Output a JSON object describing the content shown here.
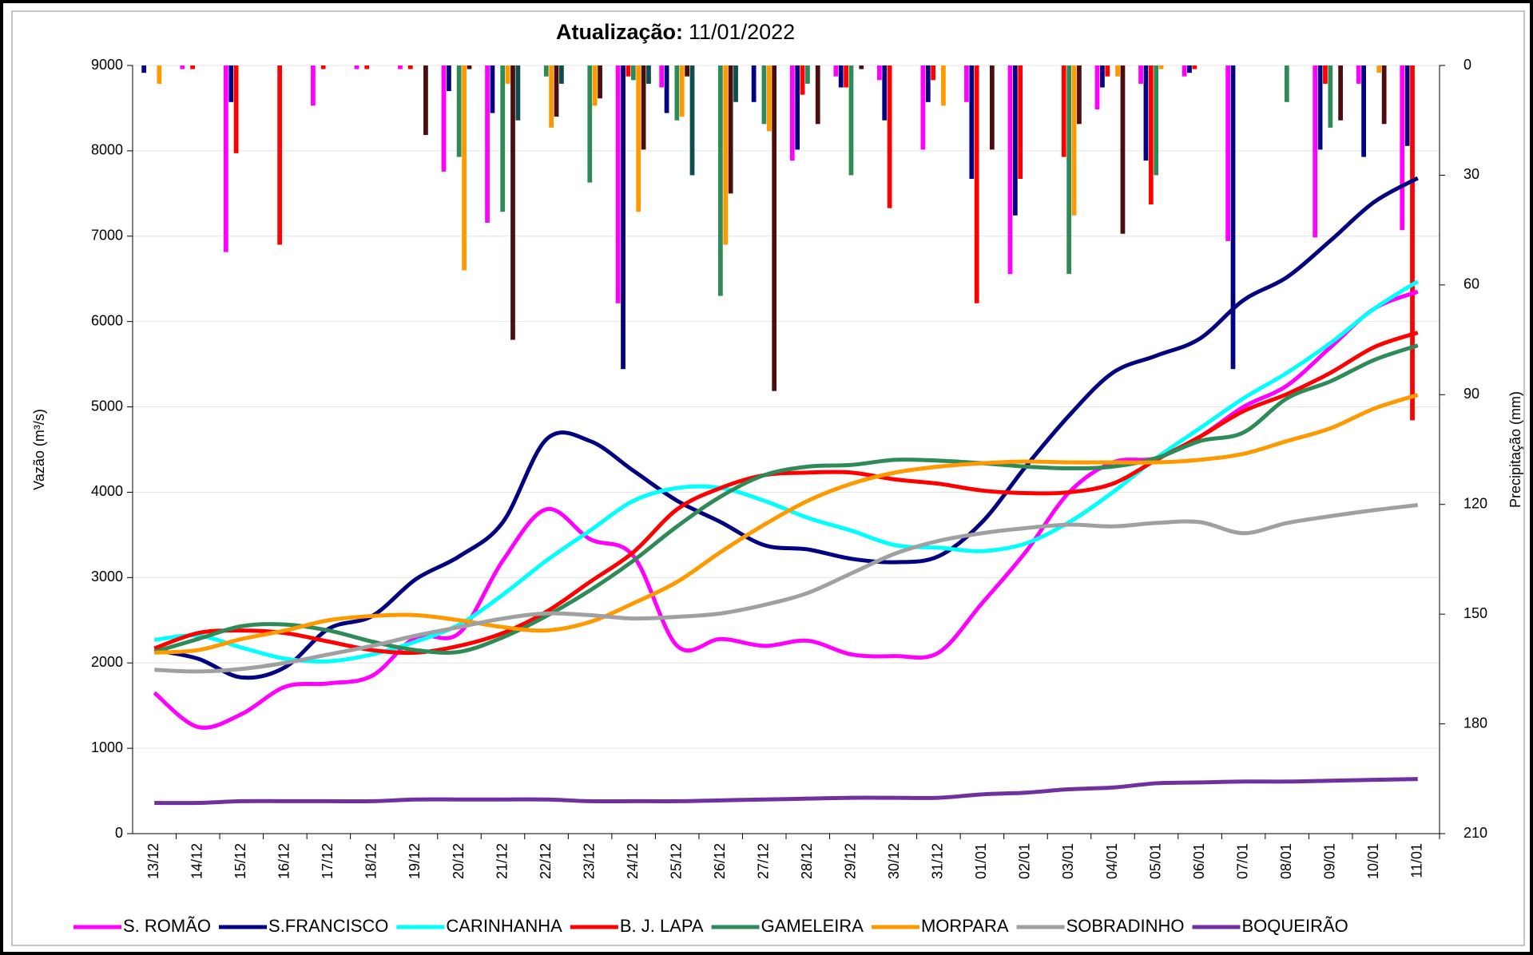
{
  "chart_data": {
    "type": "line",
    "title_label": "Atualização:",
    "title_date": "11/01/2022",
    "y_label": "Vazão (m³/s)",
    "y2_label": "Precipitação (mm)",
    "categories": [
      "13/12",
      "14/12",
      "15/12",
      "16/12",
      "17/12",
      "18/12",
      "19/12",
      "20/12",
      "21/12",
      "22/12",
      "23/12",
      "24/12",
      "25/12",
      "26/12",
      "27/12",
      "28/12",
      "29/12",
      "30/12",
      "31/12",
      "01/01",
      "02/01",
      "03/01",
      "04/01",
      "05/01",
      "06/01",
      "07/01",
      "08/01",
      "09/01",
      "10/01",
      "11/01"
    ],
    "ylim": [
      0,
      9000
    ],
    "yticks": [
      0,
      1000,
      2000,
      3000,
      4000,
      5000,
      6000,
      7000,
      8000,
      9000
    ],
    "y2lim": [
      0,
      210
    ],
    "y2ticks": [
      0,
      30,
      60,
      90,
      120,
      150,
      180,
      210
    ],
    "y2_inverted": true,
    "grid": true,
    "legend": "bottom",
    "series": [
      {
        "name": "S. ROMÃO",
        "color": "#ff00ff",
        "values": [
          1650,
          1250,
          1400,
          1720,
          1760,
          1850,
          2300,
          2350,
          3200,
          3800,
          3450,
          3250,
          2200,
          2280,
          2200,
          2260,
          2100,
          2080,
          2120,
          2700,
          3300,
          4000,
          4350,
          4400,
          4650,
          5000,
          5250,
          5700,
          6150,
          6350
        ]
      },
      {
        "name": "S.FRANCISCO",
        "color": "#000080",
        "values": [
          2150,
          2050,
          1830,
          1950,
          2400,
          2550,
          2980,
          3250,
          3650,
          4620,
          4600,
          4250,
          3900,
          3650,
          3380,
          3330,
          3220,
          3180,
          3250,
          3650,
          4300,
          4900,
          5400,
          5600,
          5800,
          6250,
          6520,
          6950,
          7400,
          7680
        ]
      },
      {
        "name": "CARINHANHA",
        "color": "#00ffff",
        "values": [
          2270,
          2320,
          2180,
          2050,
          2020,
          2100,
          2250,
          2450,
          2800,
          3200,
          3550,
          3900,
          4050,
          4050,
          3900,
          3700,
          3550,
          3380,
          3350,
          3310,
          3400,
          3650,
          4000,
          4400,
          4750,
          5100,
          5400,
          5750,
          6150,
          6470
        ]
      },
      {
        "name": "B. J. LAPA",
        "color": "#ff0000",
        "values": [
          2170,
          2350,
          2380,
          2350,
          2250,
          2150,
          2120,
          2200,
          2350,
          2600,
          2950,
          3300,
          3800,
          4050,
          4200,
          4230,
          4230,
          4150,
          4100,
          4020,
          3990,
          4000,
          4100,
          4380,
          4650,
          4950,
          5150,
          5400,
          5700,
          5870
        ]
      },
      {
        "name": "GAMELEIRA",
        "color": "#2e8b57",
        "values": [
          2130,
          2280,
          2430,
          2450,
          2380,
          2250,
          2150,
          2130,
          2300,
          2550,
          2850,
          3200,
          3600,
          3950,
          4200,
          4300,
          4320,
          4380,
          4370,
          4340,
          4300,
          4280,
          4300,
          4400,
          4600,
          4700,
          5100,
          5300,
          5550,
          5720
        ]
      },
      {
        "name": "MORPARA",
        "color": "#ff9900",
        "values": [
          2120,
          2150,
          2280,
          2380,
          2500,
          2550,
          2560,
          2500,
          2420,
          2380,
          2480,
          2700,
          2950,
          3300,
          3620,
          3900,
          4100,
          4230,
          4300,
          4340,
          4360,
          4350,
          4350,
          4350,
          4380,
          4450,
          4600,
          4750,
          4980,
          5140
        ]
      },
      {
        "name": "SOBRADINHO",
        "color": "#a0a0a0",
        "values": [
          1920,
          1900,
          1930,
          2000,
          2100,
          2200,
          2320,
          2420,
          2520,
          2580,
          2560,
          2520,
          2540,
          2580,
          2680,
          2820,
          3050,
          3280,
          3430,
          3520,
          3580,
          3620,
          3600,
          3640,
          3650,
          3520,
          3640,
          3720,
          3790,
          3850
        ]
      },
      {
        "name": "BOQUEIRÃO",
        "color": "#7030a0",
        "values": [
          360,
          360,
          380,
          380,
          380,
          380,
          400,
          400,
          400,
          400,
          380,
          380,
          380,
          390,
          400,
          410,
          420,
          420,
          420,
          460,
          480,
          520,
          540,
          590,
          600,
          610,
          610,
          620,
          630,
          640
        ]
      }
    ],
    "bar_series": [
      {
        "color": "#ff00ff",
        "axis": "y2",
        "values": [
          0,
          1,
          51,
          0,
          11,
          1,
          1,
          29,
          43,
          0,
          0,
          65,
          6,
          0,
          0,
          26,
          3,
          4,
          23,
          10,
          57,
          0,
          12,
          5,
          3,
          48,
          0,
          47,
          5,
          45
        ]
      },
      {
        "color": "#000080",
        "axis": "y2",
        "values": [
          2,
          0,
          10,
          0,
          0,
          0,
          0,
          7,
          13,
          0,
          0,
          83,
          13,
          0,
          10,
          23,
          6,
          15,
          10,
          31,
          41,
          0,
          6,
          26,
          2,
          83,
          0,
          23,
          25,
          22
        ]
      },
      {
        "color": "#ff0000",
        "axis": "y2",
        "values": [
          0,
          1,
          24,
          49,
          1,
          1,
          1,
          0,
          0,
          0,
          0,
          3,
          0,
          0,
          0,
          8,
          6,
          39,
          4,
          65,
          31,
          25,
          3,
          38,
          1,
          0,
          0,
          5,
          0,
          97
        ]
      },
      {
        "color": "#2e8b57",
        "axis": "y2",
        "values": [
          0,
          0,
          0,
          0,
          0,
          0,
          0,
          25,
          40,
          3,
          32,
          4,
          15,
          63,
          16,
          5,
          30,
          0,
          0,
          0,
          0,
          57,
          0,
          30,
          0,
          0,
          10,
          17,
          0,
          0
        ]
      },
      {
        "color": "#ff9900",
        "axis": "y2",
        "values": [
          5,
          0,
          0,
          0,
          0,
          0,
          0,
          56,
          5,
          17,
          11,
          40,
          14,
          49,
          18,
          0,
          0,
          0,
          11,
          0,
          0,
          41,
          3,
          1,
          0,
          0,
          0,
          0,
          2,
          0
        ]
      },
      {
        "color": "#4b0d0d",
        "axis": "y2",
        "values": [
          0,
          0,
          0,
          0,
          0,
          0,
          19,
          1,
          75,
          14,
          9,
          23,
          3,
          35,
          89,
          16,
          1,
          0,
          0,
          23,
          0,
          16,
          46,
          0,
          0,
          0,
          0,
          15,
          16,
          0
        ]
      },
      {
        "color": "#0d4d4d",
        "axis": "y2",
        "values": [
          0,
          0,
          0,
          0,
          0,
          0,
          0,
          0,
          15,
          5,
          0,
          5,
          30,
          10,
          0,
          0,
          0,
          0,
          0,
          0,
          0,
          0,
          0,
          0,
          0,
          0,
          0,
          0,
          0,
          0
        ]
      }
    ]
  }
}
